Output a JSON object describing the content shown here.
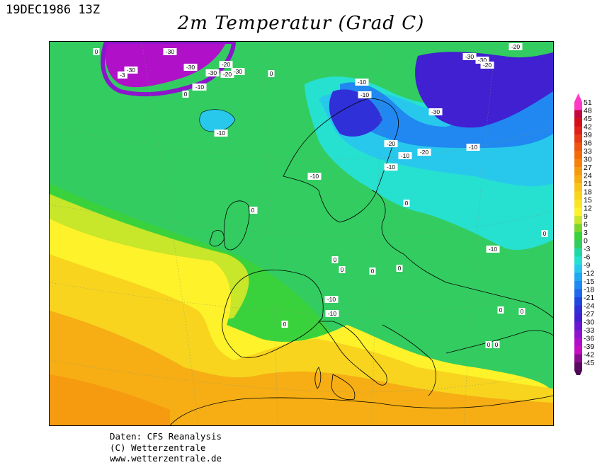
{
  "header": {
    "timestamp": "19DEC1986 13Z",
    "title": "2m Temperatur (Grad C)"
  },
  "footer": {
    "line1": "Daten: CFS Reanalysis",
    "line2": "(C) Wetterzentrale",
    "line3": "www.wetterzentrale.de"
  },
  "legend": {
    "ticks": [
      "51",
      "48",
      "45",
      "42",
      "39",
      "36",
      "33",
      "30",
      "27",
      "24",
      "21",
      "18",
      "15",
      "12",
      "9",
      "6",
      "3",
      "0",
      "-3",
      "-6",
      "-9",
      "-12",
      "-15",
      "-18",
      "-21",
      "-24",
      "-27",
      "-30",
      "-33",
      "-36",
      "-39",
      "-42",
      "-45"
    ],
    "colors": [
      "#ff39c6",
      "#c20a3c",
      "#d40f1a",
      "#e0201a",
      "#e83a14",
      "#ee5510",
      "#f26a0a",
      "#f5820a",
      "#f69a10",
      "#f6ae14",
      "#f8c41c",
      "#f8d41e",
      "#fae424",
      "#fef22a",
      "#c8e62a",
      "#78d62e",
      "#3ad23c",
      "#33cc60",
      "#1ed8a6",
      "#26e0d0",
      "#28c8ec",
      "#21a8f0",
      "#2088f0",
      "#2068ec",
      "#2048e0",
      "#3030d8",
      "#4020d0",
      "#6818d0",
      "#8c14cc",
      "#b010c8",
      "#c40ec0",
      "#8a0c90",
      "#5a0a60"
    ],
    "arrow_top_color": "#ff39c6",
    "arrow_bottom_color": "#4a0a50"
  },
  "map_labels": [
    {
      "text": "0"
    },
    {
      "text": "-3"
    },
    {
      "text": "-30"
    },
    {
      "text": "-30"
    },
    {
      "text": "-30"
    },
    {
      "text": "-30"
    },
    {
      "text": "-20"
    },
    {
      "text": "-20"
    },
    {
      "text": "-10"
    },
    {
      "text": "0"
    },
    {
      "text": "0"
    },
    {
      "text": "-10"
    },
    {
      "text": "-10"
    },
    {
      "text": "-10"
    },
    {
      "text": "-30"
    },
    {
      "text": "-20"
    },
    {
      "text": "-10"
    },
    {
      "text": "-20"
    },
    {
      "text": "-10"
    },
    {
      "text": "-10"
    },
    {
      "text": "-10"
    },
    {
      "text": "0"
    },
    {
      "text": "0"
    },
    {
      "text": "0"
    },
    {
      "text": "-10"
    },
    {
      "text": "0"
    },
    {
      "text": "0"
    },
    {
      "text": "0"
    },
    {
      "text": "0"
    },
    {
      "text": "-10"
    },
    {
      "text": "-10"
    },
    {
      "text": "0"
    },
    {
      "text": "0"
    },
    {
      "text": "0"
    },
    {
      "text": "0"
    },
    {
      "text": "-30"
    },
    {
      "text": "-30"
    },
    {
      "text": "-30"
    },
    {
      "text": "-20"
    },
    {
      "text": "-20"
    },
    {
      "text": "-10"
    },
    {
      "text": "0"
    },
    {
      "text": "0"
    },
    {
      "text": "-10"
    }
  ]
}
